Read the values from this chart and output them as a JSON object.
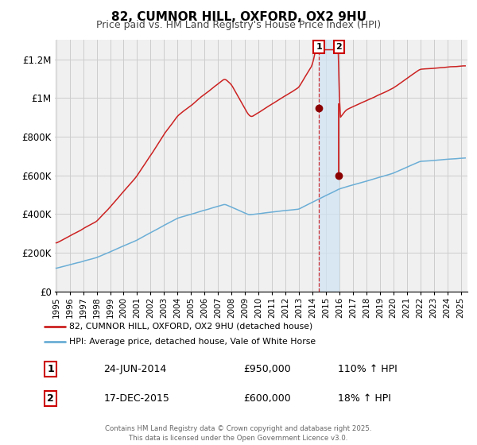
{
  "title": "82, CUMNOR HILL, OXFORD, OX2 9HU",
  "subtitle": "Price paid vs. HM Land Registry's House Price Index (HPI)",
  "hpi_color": "#6baed6",
  "price_color": "#cc2222",
  "marker_color": "#8b0000",
  "annotation_color": "#cc0000",
  "bg_color": "#f0f0f0",
  "grid_color": "#cccccc",
  "ylabel_ticks": [
    "£0",
    "£200K",
    "£400K",
    "£600K",
    "£800K",
    "£1M",
    "£1.2M"
  ],
  "ytick_values": [
    0,
    200000,
    400000,
    600000,
    800000,
    1000000,
    1200000
  ],
  "ylim": [
    0,
    1300000
  ],
  "xlim_start": 1994.9,
  "xlim_end": 2025.5,
  "point1_x": 2014.48,
  "point1_y": 950000,
  "point2_x": 2015.96,
  "point2_y": 600000,
  "vline1_x": 2014.48,
  "vline2_x": 2015.96,
  "legend1_label": "82, CUMNOR HILL, OXFORD, OX2 9HU (detached house)",
  "legend2_label": "HPI: Average price, detached house, Vale of White Horse",
  "table_row1": [
    "1",
    "24-JUN-2014",
    "£950,000",
    "110% ↑ HPI"
  ],
  "table_row2": [
    "2",
    "17-DEC-2015",
    "£600,000",
    "18% ↑ HPI"
  ],
  "footer": "Contains HM Land Registry data © Crown copyright and database right 2025.\nThis data is licensed under the Open Government Licence v3.0.",
  "xlabel_years": [
    1995,
    1996,
    1997,
    1998,
    1999,
    2000,
    2001,
    2002,
    2003,
    2004,
    2005,
    2006,
    2007,
    2008,
    2009,
    2010,
    2011,
    2012,
    2013,
    2014,
    2015,
    2016,
    2017,
    2018,
    2019,
    2020,
    2021,
    2022,
    2023,
    2024,
    2025
  ]
}
